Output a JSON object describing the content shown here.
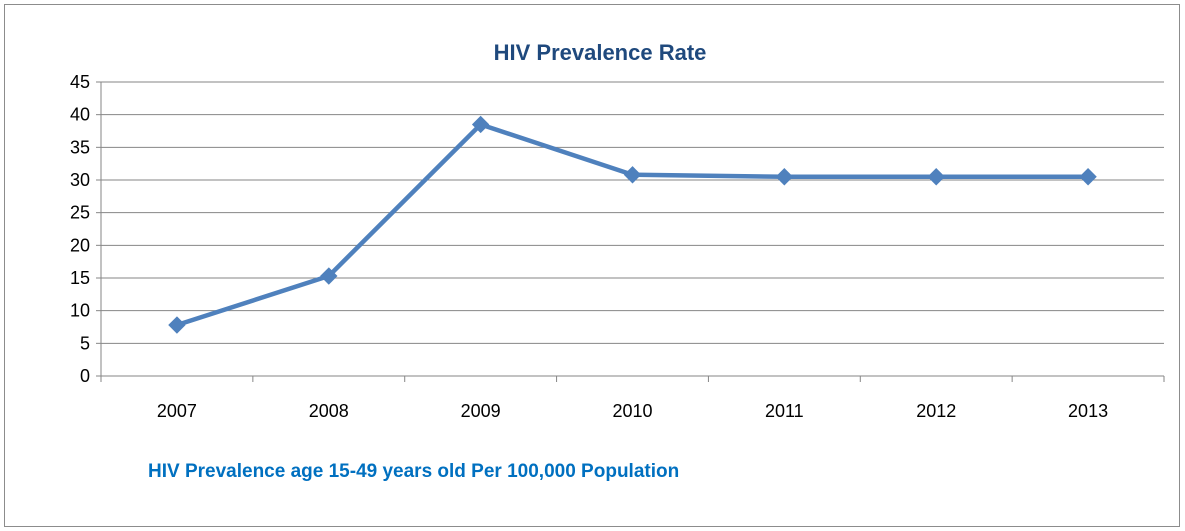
{
  "chart_data": {
    "type": "line",
    "title": "HIV Prevalence Rate",
    "caption": "HIV Prevalence age 15-49 years old Per 100,000 Population",
    "x": [
      "2007",
      "2008",
      "2009",
      "2010",
      "2011",
      "2012",
      "2013"
    ],
    "series": [
      {
        "values": [
          7.8,
          15.3,
          38.5,
          30.8,
          30.5,
          30.5,
          30.5
        ]
      }
    ],
    "ylim": [
      0,
      45
    ],
    "yticks": [
      "0",
      "5",
      "10",
      "15",
      "20",
      "25",
      "30",
      "35",
      "40",
      "45"
    ],
    "grid": true,
    "legend": "none",
    "marker": "diamond"
  },
  "colors": {
    "title": "#1f497d",
    "caption": "#0070c0",
    "series": "#4f81bd",
    "grid": "#868686",
    "axis": "#868686"
  }
}
